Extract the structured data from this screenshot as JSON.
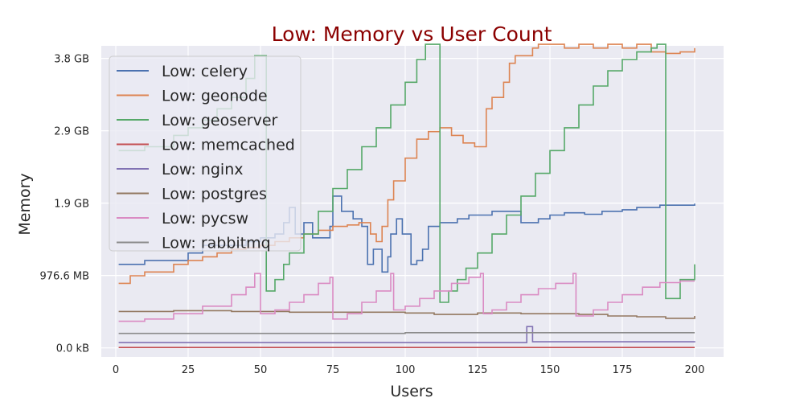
{
  "chart_data": {
    "type": "line",
    "title": "Low: Memory vs User Count",
    "xlabel": "Users",
    "ylabel": "Memory",
    "xlim": [
      -5,
      210
    ],
    "ylim": [
      -0.12,
      3.98
    ],
    "x_ticks": [
      0,
      25,
      50,
      75,
      100,
      125,
      150,
      175,
      200
    ],
    "x_tick_labels": [
      "0",
      "25",
      "50",
      "75",
      "100",
      "125",
      "150",
      "175",
      "200"
    ],
    "y_ticks": [
      0,
      0.9537,
      1.9073,
      2.861,
      3.8147
    ],
    "y_tick_labels": [
      "0.0 kB",
      "976.6 MB",
      "1.9 GB",
      "2.9 GB",
      "3.8 GB"
    ],
    "y_unit": "GiB",
    "grid": true,
    "legend_position": "top-left",
    "series": [
      {
        "name": "Low: celery",
        "color": "#4c72b0",
        "points": [
          [
            1,
            1.1
          ],
          [
            10,
            1.1
          ],
          [
            10,
            1.15
          ],
          [
            20,
            1.15
          ],
          [
            25,
            1.25
          ],
          [
            30,
            1.35
          ],
          [
            40,
            1.35
          ],
          [
            45,
            1.4
          ],
          [
            50,
            1.45
          ],
          [
            55,
            1.5
          ],
          [
            58,
            1.65
          ],
          [
            60,
            1.85
          ],
          [
            62,
            1.5
          ],
          [
            65,
            1.65
          ],
          [
            68,
            1.45
          ],
          [
            72,
            1.45
          ],
          [
            74,
            1.6
          ],
          [
            75,
            2.0
          ],
          [
            78,
            1.8
          ],
          [
            82,
            1.7
          ],
          [
            85,
            1.6
          ],
          [
            87,
            1.1
          ],
          [
            89,
            1.3
          ],
          [
            92,
            1.0
          ],
          [
            94,
            1.2
          ],
          [
            95,
            1.5
          ],
          [
            97,
            1.7
          ],
          [
            99,
            1.5
          ],
          [
            102,
            1.1
          ],
          [
            104,
            1.15
          ],
          [
            106,
            1.3
          ],
          [
            108,
            1.6
          ],
          [
            112,
            1.65
          ],
          [
            118,
            1.7
          ],
          [
            122,
            1.75
          ],
          [
            130,
            1.8
          ],
          [
            136,
            1.8
          ],
          [
            140,
            1.65
          ],
          [
            146,
            1.7
          ],
          [
            150,
            1.75
          ],
          [
            155,
            1.78
          ],
          [
            162,
            1.76
          ],
          [
            168,
            1.8
          ],
          [
            175,
            1.82
          ],
          [
            180,
            1.85
          ],
          [
            188,
            1.88
          ],
          [
            195,
            1.88
          ],
          [
            200,
            1.9
          ]
        ]
      },
      {
        "name": "Low: geonode",
        "color": "#dd8452",
        "points": [
          [
            1,
            0.85
          ],
          [
            5,
            0.95
          ],
          [
            10,
            1.0
          ],
          [
            20,
            1.1
          ],
          [
            25,
            1.15
          ],
          [
            30,
            1.2
          ],
          [
            35,
            1.25
          ],
          [
            40,
            1.3
          ],
          [
            45,
            1.32
          ],
          [
            50,
            1.35
          ],
          [
            55,
            1.4
          ],
          [
            60,
            1.45
          ],
          [
            65,
            1.5
          ],
          [
            70,
            1.55
          ],
          [
            75,
            1.6
          ],
          [
            80,
            1.62
          ],
          [
            84,
            1.65
          ],
          [
            88,
            1.5
          ],
          [
            90,
            1.4
          ],
          [
            92,
            1.6
          ],
          [
            94,
            1.95
          ],
          [
            96,
            2.2
          ],
          [
            100,
            2.5
          ],
          [
            104,
            2.75
          ],
          [
            108,
            2.85
          ],
          [
            112,
            2.9
          ],
          [
            116,
            2.8
          ],
          [
            120,
            2.7
          ],
          [
            124,
            2.65
          ],
          [
            127,
            2.65
          ],
          [
            128,
            3.15
          ],
          [
            130,
            3.3
          ],
          [
            134,
            3.5
          ],
          [
            136,
            3.75
          ],
          [
            138,
            3.85
          ],
          [
            141,
            3.85
          ],
          [
            144,
            3.95
          ],
          [
            146,
            4.0
          ],
          [
            150,
            4.0
          ],
          [
            155,
            3.95
          ],
          [
            160,
            4.0
          ],
          [
            165,
            3.95
          ],
          [
            170,
            4.0
          ],
          [
            175,
            3.95
          ],
          [
            180,
            4.0
          ],
          [
            185,
            3.9
          ],
          [
            190,
            3.88
          ],
          [
            195,
            3.9
          ],
          [
            200,
            3.95
          ]
        ]
      },
      {
        "name": "Low: geoserver",
        "color": "#55a868",
        "points": [
          [
            1,
            2.6
          ],
          [
            5,
            2.6
          ],
          [
            10,
            2.65
          ],
          [
            20,
            2.8
          ],
          [
            25,
            2.9
          ],
          [
            30,
            3.0
          ],
          [
            35,
            3.15
          ],
          [
            40,
            3.3
          ],
          [
            45,
            3.55
          ],
          [
            48,
            3.85
          ],
          [
            52,
            0.75
          ],
          [
            55,
            0.9
          ],
          [
            58,
            1.1
          ],
          [
            60,
            1.25
          ],
          [
            65,
            1.5
          ],
          [
            70,
            1.8
          ],
          [
            75,
            2.1
          ],
          [
            80,
            2.35
          ],
          [
            85,
            2.65
          ],
          [
            90,
            2.9
          ],
          [
            95,
            3.2
          ],
          [
            100,
            3.5
          ],
          [
            104,
            3.8
          ],
          [
            107,
            4.0
          ],
          [
            109,
            4.0
          ],
          [
            112,
            0.6
          ],
          [
            115,
            0.75
          ],
          [
            118,
            0.9
          ],
          [
            121,
            1.05
          ],
          [
            125,
            1.25
          ],
          [
            130,
            1.5
          ],
          [
            135,
            1.75
          ],
          [
            140,
            2.0
          ],
          [
            145,
            2.3
          ],
          [
            150,
            2.6
          ],
          [
            155,
            2.9
          ],
          [
            160,
            3.2
          ],
          [
            165,
            3.45
          ],
          [
            170,
            3.65
          ],
          [
            175,
            3.8
          ],
          [
            180,
            3.9
          ],
          [
            185,
            3.95
          ],
          [
            187,
            4.0
          ],
          [
            190,
            0.65
          ],
          [
            193,
            0.65
          ],
          [
            195,
            0.9
          ],
          [
            200,
            1.1
          ]
        ]
      },
      {
        "name": "Low: memcached",
        "color": "#c44e52",
        "points": [
          [
            1,
            0.005
          ],
          [
            200,
            0.005
          ]
        ]
      },
      {
        "name": "Low: nginx",
        "color": "#8172b3",
        "points": [
          [
            1,
            0.07
          ],
          [
            140,
            0.07
          ],
          [
            142,
            0.28
          ],
          [
            143,
            0.28
          ],
          [
            144,
            0.08
          ],
          [
            160,
            0.08
          ],
          [
            200,
            0.09
          ]
        ]
      },
      {
        "name": "Low: postgres",
        "color": "#937860",
        "points": [
          [
            1,
            0.48
          ],
          [
            20,
            0.49
          ],
          [
            40,
            0.48
          ],
          [
            60,
            0.47
          ],
          [
            80,
            0.47
          ],
          [
            100,
            0.46
          ],
          [
            110,
            0.44
          ],
          [
            125,
            0.46
          ],
          [
            140,
            0.45
          ],
          [
            160,
            0.44
          ],
          [
            170,
            0.42
          ],
          [
            180,
            0.41
          ],
          [
            190,
            0.39
          ],
          [
            200,
            0.42
          ]
        ]
      },
      {
        "name": "Low: pycsw",
        "color": "#da8bc3",
        "points": [
          [
            1,
            0.35
          ],
          [
            10,
            0.38
          ],
          [
            20,
            0.45
          ],
          [
            30,
            0.55
          ],
          [
            40,
            0.7
          ],
          [
            45,
            0.8
          ],
          [
            48,
            0.98
          ],
          [
            50,
            0.45
          ],
          [
            55,
            0.5
          ],
          [
            60,
            0.6
          ],
          [
            65,
            0.7
          ],
          [
            70,
            0.85
          ],
          [
            74,
            0.93
          ],
          [
            75,
            0.38
          ],
          [
            80,
            0.45
          ],
          [
            85,
            0.6
          ],
          [
            90,
            0.75
          ],
          [
            95,
            0.98
          ],
          [
            96,
            0.5
          ],
          [
            100,
            0.55
          ],
          [
            105,
            0.65
          ],
          [
            110,
            0.75
          ],
          [
            116,
            0.85
          ],
          [
            122,
            0.93
          ],
          [
            126,
            0.98
          ],
          [
            127,
            0.45
          ],
          [
            130,
            0.5
          ],
          [
            135,
            0.6
          ],
          [
            140,
            0.7
          ],
          [
            146,
            0.78
          ],
          [
            152,
            0.85
          ],
          [
            158,
            0.98
          ],
          [
            159,
            0.42
          ],
          [
            165,
            0.5
          ],
          [
            170,
            0.6
          ],
          [
            175,
            0.7
          ],
          [
            182,
            0.8
          ],
          [
            188,
            0.86
          ],
          [
            195,
            0.88
          ],
          [
            200,
            0.88
          ]
        ]
      },
      {
        "name": "Low: rabbitmq",
        "color": "#8c8c8c",
        "points": [
          [
            1,
            0.19
          ],
          [
            50,
            0.19
          ],
          [
            100,
            0.2
          ],
          [
            150,
            0.2
          ],
          [
            200,
            0.2
          ]
        ]
      }
    ]
  }
}
